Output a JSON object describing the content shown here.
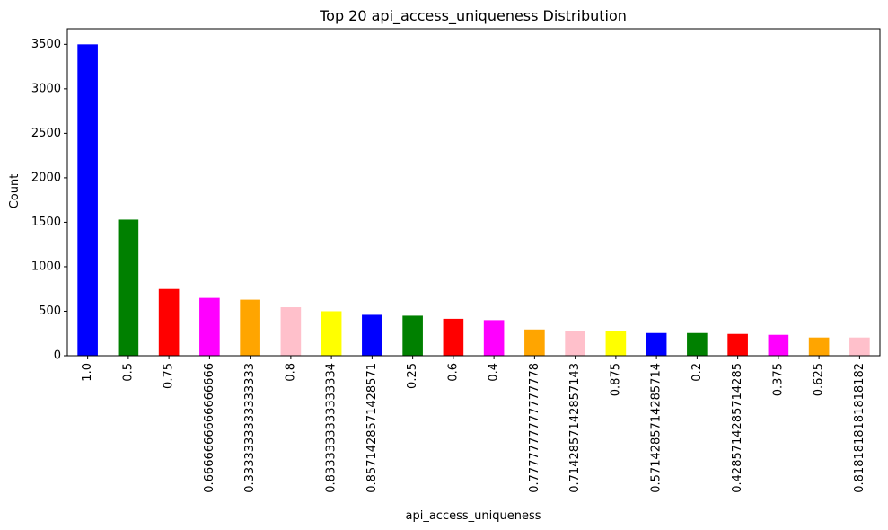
{
  "chart_data": {
    "type": "bar",
    "title": "Top 20 api_access_uniqueness Distribution",
    "xlabel": "api_access_uniqueness",
    "ylabel": "Count",
    "ylim": [
      0,
      3675
    ],
    "yticks": [
      0,
      500,
      1000,
      1500,
      2000,
      2500,
      3000,
      3500
    ],
    "grid": false,
    "legend": "none",
    "categories": [
      "1.0",
      "0.5",
      "0.75",
      "0.6666666666666666",
      "0.3333333333333333",
      "0.8",
      "0.8333333333333334",
      "0.8571428571428571",
      "0.25",
      "0.6",
      "0.4",
      "0.7777777777777778",
      "0.7142857142857143",
      "0.875",
      "0.5714285714285714",
      "0.2",
      "0.4285714285714285",
      "0.375",
      "0.625",
      "0.8181818181818182"
    ],
    "values": [
      3500,
      1530,
      750,
      650,
      630,
      545,
      500,
      460,
      450,
      415,
      400,
      295,
      275,
      275,
      255,
      255,
      245,
      235,
      205,
      205
    ],
    "colors": [
      "#0000ff",
      "#008000",
      "#ff0000",
      "#ff00ff",
      "#ffa500",
      "#ffc0cb",
      "#ffff00"
    ]
  }
}
